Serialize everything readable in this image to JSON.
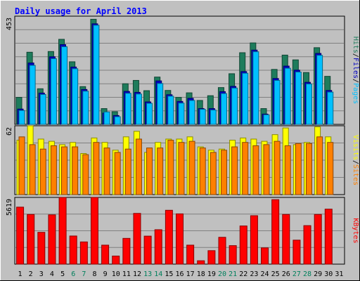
{
  "chart_data": [
    {
      "type": "bar",
      "title": "Daily usage for April 2013",
      "categories": [
        "1",
        "2",
        "3",
        "4",
        "5",
        "6",
        "7",
        "8",
        "9",
        "10",
        "11",
        "12",
        "13",
        "14",
        "15",
        "16",
        "17",
        "18",
        "19",
        "20",
        "21",
        "22",
        "23",
        "24",
        "25",
        "26",
        "27",
        "28",
        "29",
        "30",
        "31"
      ],
      "weekend_days": [
        "6",
        "7",
        "13",
        "14",
        "20",
        "21",
        "27",
        "28"
      ],
      "panel": "requests",
      "y_label_max": "453",
      "ylim": [
        0,
        453
      ],
      "series": [
        {
          "name": "Hits",
          "color": "#1e7c5c",
          "values": [
            113,
            302,
            149,
            305,
            356,
            262,
            158,
            440,
            66,
            53,
            170,
            184,
            141,
            198,
            142,
            113,
            132,
            100,
            120,
            154,
            212,
            300,
            341,
            66,
            230,
            290,
            270,
            217,
            321,
            201,
            0
          ]
        },
        {
          "name": "Files",
          "color": "#0000c0",
          "values": [
            64,
            257,
            131,
            283,
            334,
            240,
            146,
            421,
            47,
            37,
            138,
            134,
            94,
            182,
            124,
            96,
            109,
            66,
            66,
            137,
            159,
            221,
            311,
            43,
            192,
            244,
            227,
            176,
            297,
            142,
            0
          ]
        },
        {
          "name": "Pages",
          "color": "#00c0ff",
          "values": [
            58,
            247,
            125,
            275,
            325,
            233,
            139,
            415,
            52,
            32,
            130,
            127,
            88,
            171,
            118,
            89,
            100,
            63,
            60,
            129,
            152,
            214,
            304,
            40,
            184,
            235,
            219,
            169,
            289,
            135,
            0
          ]
        }
      ],
      "axis_legend": [
        "Pages",
        "Files",
        "Hits"
      ]
    },
    {
      "type": "bar",
      "panel": "visits",
      "y_label_max": "62",
      "ylim": [
        0,
        62
      ],
      "series": [
        {
          "name": "Visits",
          "color": "#ffff00",
          "values": [
            49,
            62,
            50,
            48,
            45,
            47,
            37,
            51,
            47,
            40,
            52,
            57,
            38,
            47,
            50,
            50,
            52,
            43,
            40,
            41,
            49,
            51,
            50,
            48,
            54,
            60,
            45,
            47,
            61,
            52,
            0
          ]
        },
        {
          "name": "Sites",
          "color": "#ff8000",
          "values": [
            52,
            45,
            41,
            44,
            43,
            43,
            36,
            47,
            42,
            38,
            41,
            50,
            42,
            42,
            49,
            47,
            48,
            42,
            38,
            40,
            43,
            47,
            44,
            45,
            48,
            44,
            46,
            46,
            52,
            47,
            0
          ]
        }
      ],
      "axis_legend": [
        "Sites",
        "Visits"
      ]
    },
    {
      "type": "bar",
      "panel": "kbytes",
      "y_label_max": "5619",
      "ylim": [
        0,
        5619
      ],
      "series": [
        {
          "name": "KBytes",
          "color": "#ff0000",
          "values": [
            4800,
            4183,
            2680,
            4153,
            5619,
            2370,
            1871,
            5619,
            1600,
            683,
            2170,
            4273,
            2359,
            2900,
            4536,
            4234,
            1600,
            286,
            1136,
            2260,
            1560,
            3215,
            4080,
            1370,
            5430,
            4183,
            2021,
            3244,
            4183,
            4631,
            0
          ]
        }
      ],
      "axis_legend": [
        "KBytes"
      ]
    }
  ]
}
